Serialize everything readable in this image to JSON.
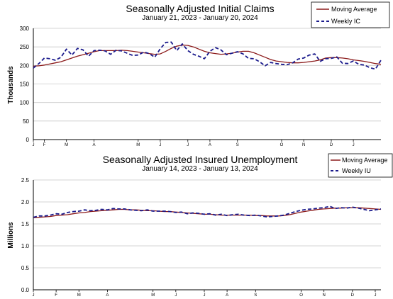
{
  "colors": {
    "moving_average": "#8b1a1a",
    "weekly": "#1a1a8c",
    "grid": "#c8c8c8",
    "axis": "#000000"
  },
  "chart_data": [
    {
      "type": "line",
      "title": "Seasonally Adjusted Initial Claims",
      "subtitle": "January 21, 2023 - January 20, 2024",
      "ylabel": "Thousands",
      "xlabel": "",
      "ylim": [
        0,
        300
      ],
      "yticks": [
        "0",
        "50",
        "100",
        "150",
        "200",
        "250",
        "300"
      ],
      "ytick_values": [
        0,
        50,
        100,
        150,
        200,
        250,
        300
      ],
      "xtick_labels": [
        "J",
        "F",
        "M",
        "A",
        "M",
        "J",
        "J",
        "A",
        "S",
        "O",
        "N",
        "D",
        "J"
      ],
      "xtick_weeks": [
        0,
        2,
        6,
        11,
        19,
        23,
        28,
        32,
        37,
        45,
        49,
        54,
        58
      ],
      "grid": true,
      "legend_position": "top-right",
      "series": [
        {
          "name": "Moving Average",
          "style": "solid",
          "values": [
            198,
            199,
            201,
            204,
            207,
            210,
            215,
            220,
            225,
            229,
            233,
            237,
            240,
            240,
            240,
            240,
            241,
            240,
            238,
            236,
            234,
            232,
            230,
            231,
            238,
            246,
            252,
            255,
            254,
            250,
            244,
            238,
            234,
            232,
            230,
            231,
            233,
            236,
            238,
            238,
            234,
            228,
            222,
            216,
            212,
            210,
            208,
            207,
            207,
            208,
            210,
            212,
            215,
            220,
            221,
            221,
            220,
            218,
            215,
            213,
            211,
            208,
            205,
            203
          ]
        },
        {
          "name": "Weekly IC",
          "style": "dashed",
          "values": [
            193,
            205,
            220,
            218,
            214,
            222,
            244,
            228,
            246,
            242,
            225,
            240,
            241,
            239,
            230,
            241,
            239,
            233,
            227,
            228,
            236,
            232,
            222,
            245,
            262,
            263,
            240,
            258,
            240,
            230,
            225,
            218,
            238,
            248,
            242,
            229,
            233,
            237,
            231,
            219,
            218,
            210,
            199,
            208,
            205,
            203,
            202,
            207,
            217,
            220,
            228,
            231,
            211,
            218,
            219,
            223,
            206,
            205,
            212,
            203,
            201,
            194,
            190,
            214
          ]
        }
      ]
    },
    {
      "type": "line",
      "title": "Seasonally Adjusted Insured Unemployment",
      "subtitle": "January 14, 2023 - January 13, 2024",
      "ylabel": "Millions",
      "xlabel": "",
      "ylim": [
        0,
        2.5
      ],
      "yticks": [
        "0.0",
        "0.5",
        "1.0",
        "1.5",
        "2.0",
        "2.5"
      ],
      "ytick_values": [
        0,
        0.5,
        1.0,
        1.5,
        2.0,
        2.5
      ],
      "xtick_labels": [
        "J",
        "F",
        "M",
        "A",
        "M",
        "J",
        "J",
        "A",
        "S",
        "O",
        "N",
        "D",
        "J"
      ],
      "xtick_weeks": [
        0,
        4,
        8,
        13,
        21,
        25,
        30,
        34,
        39,
        47,
        51,
        56,
        60
      ],
      "grid": true,
      "legend_position": "top-right",
      "series": [
        {
          "name": "Moving Average",
          "style": "solid",
          "values": [
            1.64,
            1.65,
            1.66,
            1.67,
            1.69,
            1.7,
            1.71,
            1.73,
            1.75,
            1.76,
            1.78,
            1.79,
            1.8,
            1.81,
            1.82,
            1.83,
            1.83,
            1.82,
            1.82,
            1.81,
            1.8,
            1.8,
            1.79,
            1.78,
            1.78,
            1.77,
            1.76,
            1.75,
            1.74,
            1.73,
            1.72,
            1.72,
            1.71,
            1.7,
            1.7,
            1.7,
            1.7,
            1.7,
            1.7,
            1.69,
            1.69,
            1.68,
            1.68,
            1.68,
            1.69,
            1.71,
            1.74,
            1.77,
            1.79,
            1.81,
            1.83,
            1.84,
            1.85,
            1.86,
            1.86,
            1.87,
            1.87,
            1.87,
            1.86,
            1.85,
            1.84,
            1.83
          ]
        },
        {
          "name": "Weekly IU",
          "style": "dashed",
          "values": [
            1.65,
            1.68,
            1.68,
            1.7,
            1.73,
            1.72,
            1.76,
            1.78,
            1.79,
            1.82,
            1.8,
            1.81,
            1.83,
            1.82,
            1.85,
            1.84,
            1.84,
            1.82,
            1.81,
            1.8,
            1.82,
            1.79,
            1.79,
            1.79,
            1.78,
            1.76,
            1.77,
            1.73,
            1.75,
            1.74,
            1.72,
            1.73,
            1.7,
            1.72,
            1.69,
            1.71,
            1.72,
            1.7,
            1.69,
            1.7,
            1.68,
            1.66,
            1.67,
            1.68,
            1.7,
            1.74,
            1.78,
            1.81,
            1.83,
            1.84,
            1.86,
            1.87,
            1.9,
            1.85,
            1.87,
            1.86,
            1.88,
            1.86,
            1.83,
            1.8,
            1.82,
            1.84
          ]
        }
      ]
    }
  ]
}
